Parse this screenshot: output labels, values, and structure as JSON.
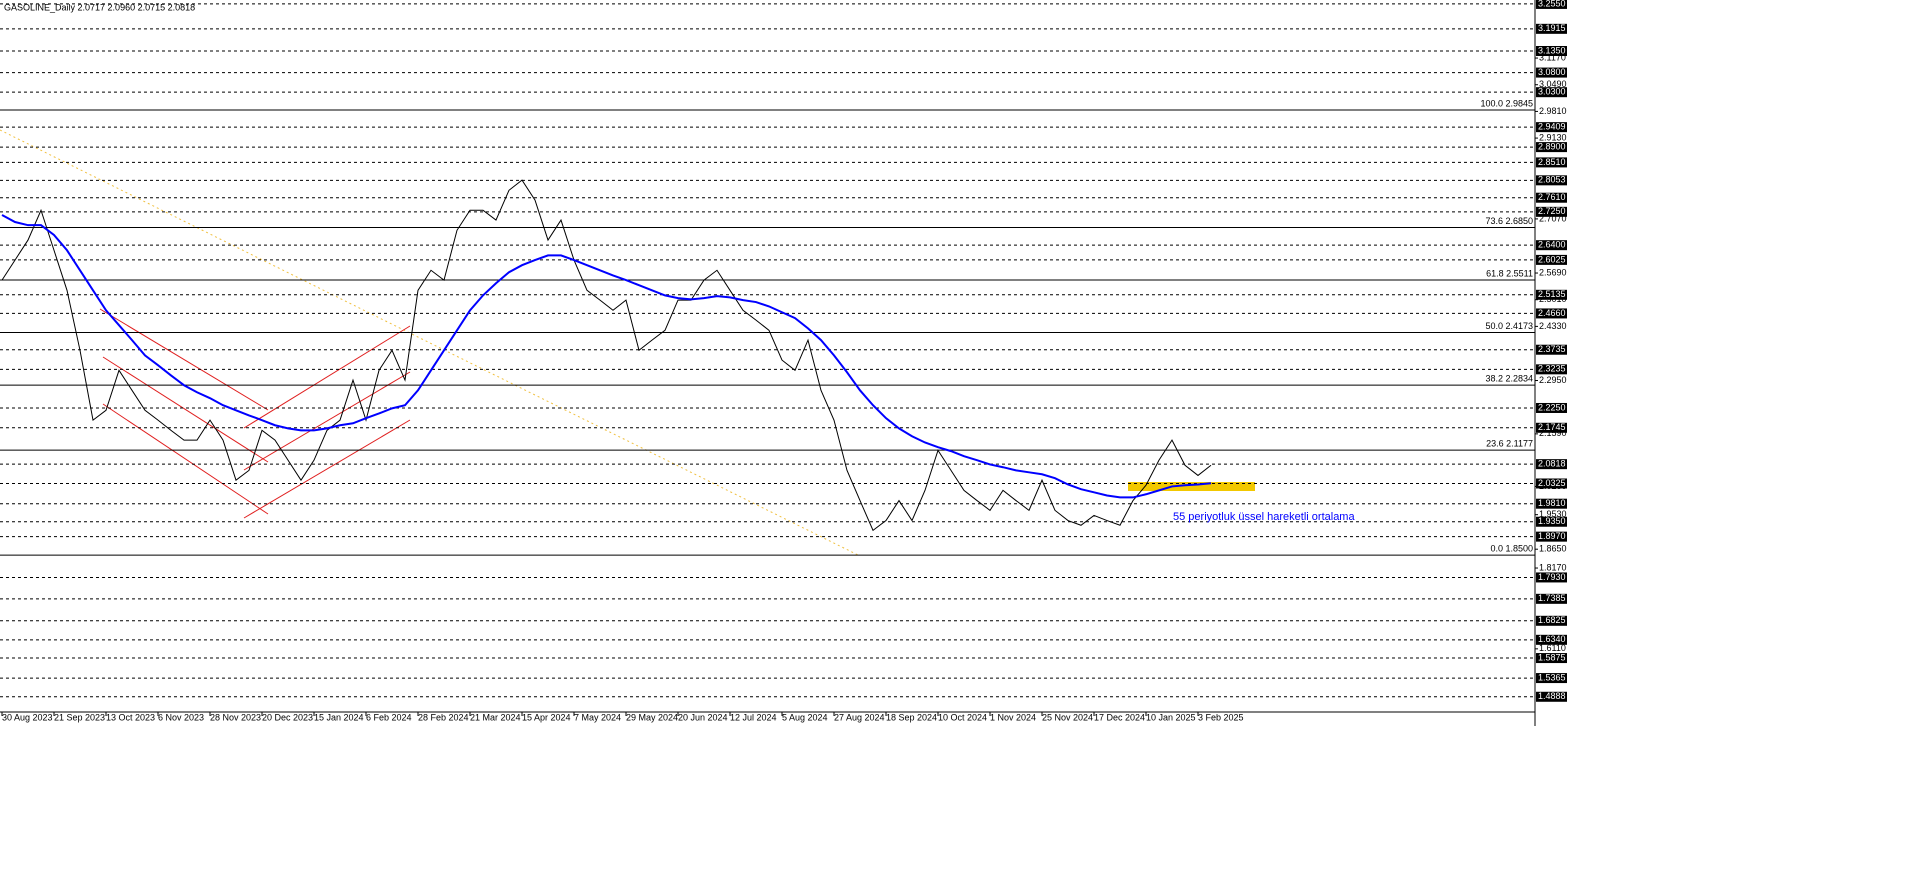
{
  "chart_data": {
    "type": "line",
    "title": "GASOLINE_Daily  2.0717 2.0960 2.0715 2.0818",
    "ylim": [
      1.45,
      3.265
    ],
    "categories": [
      "30 Aug 2023",
      null,
      null,
      null,
      "21 Sep 2023",
      null,
      null,
      null,
      "13 Oct 2023",
      null,
      null,
      null,
      "6 Nov 2023",
      null,
      null,
      null,
      "28 Nov 2023",
      null,
      null,
      null,
      "20 Dec 2023",
      null,
      null,
      null,
      "15 Jan 2024",
      null,
      null,
      null,
      "6 Feb 2024",
      null,
      null,
      null,
      "28 Feb 2024",
      null,
      null,
      null,
      "21 Mar 2024",
      null,
      null,
      null,
      "15 Apr 2024",
      null,
      null,
      null,
      "7 May 2024",
      null,
      null,
      null,
      "29 May 2024",
      null,
      null,
      null,
      "20 Jun 2024",
      null,
      null,
      null,
      "12 Jul 2024",
      null,
      null,
      null,
      "5 Aug 2024",
      null,
      null,
      null,
      "27 Aug 2024",
      null,
      null,
      null,
      "18 Sep 2024",
      null,
      null,
      null,
      "10 Oct 2024",
      null,
      null,
      null,
      "1 Nov 2024",
      null,
      null,
      null,
      "25 Nov 2024",
      null,
      null,
      null,
      "17 Dec 2024",
      null,
      null,
      null,
      "10 Jan 2025",
      null,
      null,
      null,
      "3 Feb 2025",
      null
    ],
    "series": [
      {
        "color": "#000000",
        "values": [
          2.551,
          2.602,
          2.653,
          2.729,
          2.627,
          2.525,
          2.372,
          2.194,
          2.219,
          2.321,
          2.27,
          2.219,
          2.194,
          2.168,
          2.143,
          2.143,
          2.194,
          2.143,
          2.041,
          2.066,
          2.168,
          2.143,
          2.092,
          2.041,
          2.092,
          2.168,
          2.194,
          2.296,
          2.194,
          2.321,
          2.372,
          2.296,
          2.525,
          2.576,
          2.551,
          2.678,
          2.729,
          2.729,
          2.704,
          2.78,
          2.806,
          2.755,
          2.653,
          2.704,
          2.602,
          2.525,
          2.5,
          2.474,
          2.5,
          2.372,
          2.398,
          2.423,
          2.5,
          2.5,
          2.551,
          2.576,
          2.525,
          2.474,
          2.449,
          2.423,
          2.347,
          2.321,
          2.398,
          2.27,
          2.194,
          2.066,
          1.989,
          1.913,
          1.938,
          1.989,
          1.938,
          2.015,
          2.117,
          2.066,
          2.015,
          1.989,
          1.964,
          2.015,
          1.989,
          1.964,
          2.041,
          1.964,
          1.938,
          1.926,
          1.951,
          1.938,
          1.926,
          1.989,
          2.028,
          2.092,
          2.143,
          2.079,
          2.053,
          2.079
        ]
      },
      {
        "name": "55 periyotluk üssel hareketli ortalama",
        "color": "#0000ff",
        "values": [
          2.717,
          2.699,
          2.691,
          2.691,
          2.666,
          2.627,
          2.576,
          2.525,
          2.474,
          2.436,
          2.398,
          2.359,
          2.334,
          2.308,
          2.283,
          2.265,
          2.25,
          2.232,
          2.219,
          2.206,
          2.194,
          2.181,
          2.173,
          2.168,
          2.168,
          2.173,
          2.181,
          2.186,
          2.199,
          2.211,
          2.224,
          2.232,
          2.27,
          2.321,
          2.372,
          2.423,
          2.474,
          2.512,
          2.543,
          2.571,
          2.589,
          2.602,
          2.614,
          2.614,
          2.602,
          2.589,
          2.576,
          2.563,
          2.551,
          2.538,
          2.525,
          2.512,
          2.505,
          2.502,
          2.505,
          2.51,
          2.507,
          2.5,
          2.495,
          2.484,
          2.469,
          2.454,
          2.428,
          2.398,
          2.359,
          2.316,
          2.27,
          2.232,
          2.199,
          2.173,
          2.153,
          2.137,
          2.125,
          2.115,
          2.102,
          2.092,
          2.081,
          2.074,
          2.066,
          2.061,
          2.056,
          2.046,
          2.03,
          2.018,
          2.01,
          2.002,
          1.997,
          1.997,
          2.005,
          2.015,
          2.025,
          2.028,
          2.03,
          2.033
        ]
      }
    ],
    "yticks": [
      {
        "value": 3.117,
        "label": "3.1170"
      },
      {
        "value": 3.049,
        "label": "3.0490"
      },
      {
        "value": 2.981,
        "label": "2.9810"
      },
      {
        "value": 2.913,
        "label": "2.9130"
      },
      {
        "value": 2.707,
        "label": "2.7070"
      },
      {
        "value": 2.569,
        "label": "2.5690"
      },
      {
        "value": 2.501,
        "label": "2.5010"
      },
      {
        "value": 2.433,
        "label": "2.4330"
      },
      {
        "value": 2.295,
        "label": "2.2950"
      },
      {
        "value": 2.159,
        "label": "2.1590"
      },
      {
        "value": 2.025,
        "label": "2.0250"
      },
      {
        "value": 1.953,
        "label": "1.9530"
      },
      {
        "value": 1.865,
        "label": "1.8650"
      },
      {
        "value": 1.817,
        "label": "1.8170"
      },
      {
        "value": 1.611,
        "label": "1.6110"
      }
    ],
    "levels": [
      {
        "value": 3.255,
        "label": "3.2550"
      },
      {
        "value": 3.1915,
        "label": "3.1915"
      },
      {
        "value": 3.135,
        "label": "3.1350"
      },
      {
        "value": 3.08,
        "label": "3.0800"
      },
      {
        "value": 3.03,
        "label": "3.0300"
      },
      {
        "value": 2.9409,
        "label": "2.9409"
      },
      {
        "value": 2.89,
        "label": "2.8900"
      },
      {
        "value": 2.851,
        "label": "2.8510"
      },
      {
        "value": 2.8053,
        "label": "2.8053"
      },
      {
        "value": 2.761,
        "label": "2.7610"
      },
      {
        "value": 2.725,
        "label": "2.7250"
      },
      {
        "value": 2.64,
        "label": "2.6400"
      },
      {
        "value": 2.6025,
        "label": "2.6025"
      },
      {
        "value": 2.5135,
        "label": "2.5135"
      },
      {
        "value": 2.466,
        "label": "2.4660"
      },
      {
        "value": 2.3735,
        "label": "2.3735"
      },
      {
        "value": 2.3235,
        "label": "2.3235"
      },
      {
        "value": 2.225,
        "label": "2.2250"
      },
      {
        "value": 2.1745,
        "label": "2.1745"
      },
      {
        "value": 2.0818,
        "label": "2.0818"
      },
      {
        "value": 2.0325,
        "label": "2.0325"
      },
      {
        "value": 1.981,
        "label": "1.9810"
      },
      {
        "value": 1.935,
        "label": "1.9350"
      },
      {
        "value": 1.897,
        "label": "1.8970"
      },
      {
        "value": 1.793,
        "label": "1.7930"
      },
      {
        "value": 1.7385,
        "label": "1.7385"
      },
      {
        "value": 1.6825,
        "label": "1.6825"
      },
      {
        "value": 1.634,
        "label": "1.6340"
      },
      {
        "value": 1.5875,
        "label": "1.5875"
      },
      {
        "value": 1.5365,
        "label": "1.5365"
      },
      {
        "value": 1.4888,
        "label": "1.4888"
      }
    ],
    "fibonacci": [
      {
        "value": 2.9845,
        "label": "100.0 2.9845"
      },
      {
        "value": 2.685,
        "label": "73.6 2.6850"
      },
      {
        "value": 2.5511,
        "label": "61.8 2.5511"
      },
      {
        "value": 2.4173,
        "label": "50.0 2.4173"
      },
      {
        "value": 2.2834,
        "label": "38.2 2.2834"
      },
      {
        "value": 2.1177,
        "label": "23.6 2.1177"
      },
      {
        "value": 1.85,
        "label": "0.0 1.8500"
      }
    ]
  }
}
